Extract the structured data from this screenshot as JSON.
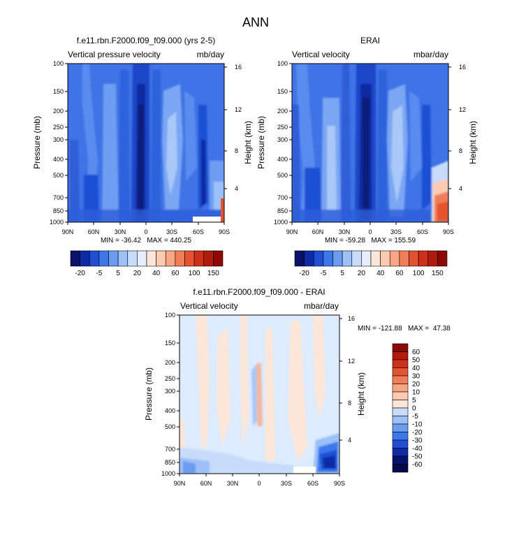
{
  "page_title": "ANN",
  "panels": [
    {
      "title": "f.e11.rbn.F2000.f09_f09.000 (yrs 2-5)",
      "left_label": "Vertical pressure velocity",
      "right_label": "mb/day",
      "ylabel": "Pressure (mb)",
      "ylabel_right": "Height (km)",
      "stats": "MIN = -36.42   MAX = 440.25"
    },
    {
      "title": "ERAI",
      "left_label": "Vertical velocity",
      "right_label": "mbar/day",
      "ylabel": "Pressure (mb)",
      "ylabel_right": "Height (km)",
      "stats": "MIN = -59.28   MAX = 155.59"
    },
    {
      "title": "f.e11.rbn.F2000.f09_f09.000 - ERAI",
      "left_label": "Vertical velocity",
      "right_label": "mbar/day",
      "ylabel": "Pressure (mb)",
      "ylabel_right": "Height (km)",
      "stats": "MIN = -121.88   MAX =  47.38"
    }
  ],
  "chart_data": [
    {
      "type": "heatmap",
      "title": "f.e11.rbn.F2000.f09_f09.000 (yrs 2-5)",
      "variable": "Vertical pressure velocity",
      "units": "mb/day",
      "x_ticks": [
        "90N",
        "60N",
        "30N",
        "0",
        "30S",
        "60S",
        "90S"
      ],
      "x_range": [
        90,
        -90
      ],
      "y_ticks_pressure": [
        100,
        150,
        200,
        250,
        300,
        400,
        500,
        700,
        850,
        1000
      ],
      "y_scale": "log",
      "y_range": [
        1000,
        100
      ],
      "y2_ticks_height_km": [
        4,
        8,
        12,
        16
      ],
      "min": -36.42,
      "max": 440.25
    },
    {
      "type": "heatmap",
      "title": "ERAI",
      "variable": "Vertical velocity",
      "units": "mbar/day",
      "x_ticks": [
        "90N",
        "60N",
        "30N",
        "0",
        "30S",
        "60S",
        "90S"
      ],
      "x_range": [
        90,
        -90
      ],
      "y_ticks_pressure": [
        100,
        150,
        200,
        250,
        300,
        400,
        500,
        700,
        850,
        1000
      ],
      "y_scale": "log",
      "y_range": [
        1000,
        100
      ],
      "y2_ticks_height_km": [
        4,
        8,
        12,
        16
      ],
      "min": -59.28,
      "max": 155.59
    },
    {
      "type": "heatmap",
      "title": "f.e11.rbn.F2000.f09_f09.000 - ERAI",
      "variable": "Vertical velocity",
      "units": "mbar/day",
      "x_ticks": [
        "90N",
        "60N",
        "30N",
        "0",
        "30S",
        "60S",
        "90S"
      ],
      "x_range": [
        90,
        -90
      ],
      "y_ticks_pressure": [
        100,
        150,
        200,
        250,
        300,
        400,
        500,
        700,
        850,
        1000
      ],
      "y_scale": "log",
      "y_range": [
        1000,
        100
      ],
      "y2_ticks_height_km": [
        4,
        8,
        12,
        16
      ],
      "min": -121.88,
      "max": 47.38
    }
  ],
  "colorbar_abs": {
    "labels": [
      "-20",
      "-5",
      "5",
      "20",
      "40",
      "60",
      "100",
      "150"
    ],
    "colors": [
      "#08126b",
      "#0e2aa5",
      "#1f4fd4",
      "#3c78ea",
      "#6a9cf2",
      "#9cc0f7",
      "#c7dcfa",
      "#e4eefc",
      "#fde6d8",
      "#fbcab0",
      "#f7a682",
      "#f07d58",
      "#e4532f",
      "#cf3018",
      "#b01b0c",
      "#8c0a03"
    ]
  },
  "colorbar_diff": {
    "labels": [
      "60",
      "50",
      "40",
      "30",
      "20",
      "10",
      "5",
      "0",
      "-5",
      "-10",
      "-20",
      "-30",
      "-40",
      "-50",
      "-60"
    ],
    "colors": [
      "#8c0a03",
      "#b01b0c",
      "#cf3018",
      "#e4532f",
      "#f07d58",
      "#f7a682",
      "#fbcab0",
      "#fde6d8",
      "#c7dcfa",
      "#9cc0f7",
      "#6a9cf2",
      "#3c78ea",
      "#1f4fd4",
      "#0e2aa5",
      "#08126b",
      "#050a4a"
    ]
  }
}
